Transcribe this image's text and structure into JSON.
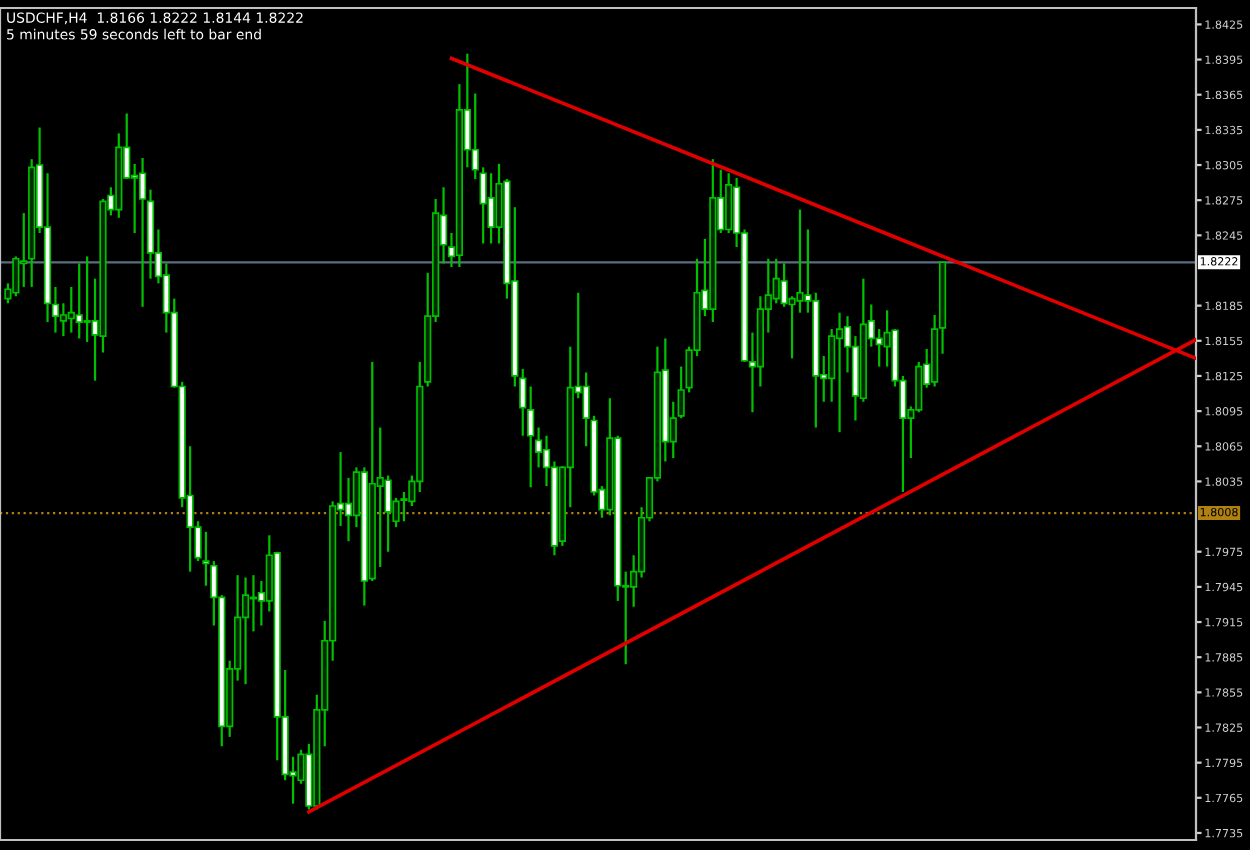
{
  "chart_data": {
    "type": "candlestick",
    "title": "USDCHF,H4  1.8166 1.8222 1.8144 1.8222",
    "annotations": [
      "5 minutes 59 seconds left to bar end"
    ],
    "color": "#00c000",
    "categories": [
      null,
      null,
      null,
      null,
      null,
      null,
      null,
      null,
      null,
      null,
      null,
      null,
      null,
      null,
      null,
      null,
      null,
      null,
      null,
      null,
      null,
      null,
      null,
      null,
      null,
      null,
      null,
      null,
      null,
      null,
      null,
      null,
      null,
      null,
      null,
      null,
      null,
      null,
      null,
      null,
      null,
      null,
      null,
      null,
      null,
      null,
      null,
      null,
      null,
      null,
      null,
      null,
      null,
      null,
      null,
      null,
      null,
      null,
      null,
      null,
      null,
      null,
      null,
      null,
      null,
      null,
      null,
      null,
      null,
      null,
      null,
      null,
      null,
      null,
      null,
      null,
      null,
      null,
      null,
      null,
      null,
      null,
      null,
      null,
      null,
      null,
      null,
      null,
      null,
      null,
      null,
      null,
      null,
      null,
      null,
      null,
      null,
      null,
      null,
      null,
      null,
      null,
      null,
      null,
      null,
      null,
      null,
      null,
      null,
      null,
      null,
      null,
      null,
      null,
      null,
      null,
      null,
      null,
      null,
      null,
      null,
      null,
      null,
      null,
      null,
      null,
      null,
      null,
      null,
      null,
      null,
      null,
      null,
      null,
      null,
      null,
      null,
      null,
      null,
      null,
      null,
      null,
      null,
      null,
      null,
      null,
      null,
      null,
      null,
      null,
      null
    ],
    "ohlc": [
      [
        1.8191,
        1.8204,
        1.8187,
        1.8199
      ],
      [
        1.8196,
        1.8227,
        1.8193,
        1.8225
      ],
      [
        1.8221,
        1.8264,
        1.8201,
        1.8223
      ],
      [
        1.8225,
        1.831,
        1.8201,
        1.8303
      ],
      [
        1.8305,
        1.8337,
        1.8247,
        1.8252
      ],
      [
        1.8252,
        1.8298,
        1.8171,
        1.8187
      ],
      [
        1.8186,
        1.8201,
        1.8162,
        1.8176
      ],
      [
        1.8172,
        1.8187,
        1.8159,
        1.8177
      ],
      [
        1.8174,
        1.8201,
        1.8162,
        1.8179
      ],
      [
        1.8177,
        1.8221,
        1.8157,
        1.8171
      ],
      [
        1.8172,
        1.8227,
        1.8154,
        1.8171
      ],
      [
        1.8172,
        1.8208,
        1.8121,
        1.816
      ],
      [
        1.8159,
        1.8276,
        1.8145,
        1.8274
      ],
      [
        1.8279,
        1.8286,
        1.8262,
        1.8267
      ],
      [
        1.8267,
        1.8332,
        1.826,
        1.832
      ],
      [
        1.832,
        1.8349,
        1.8293,
        1.8294
      ],
      [
        1.8296,
        1.8306,
        1.8247,
        1.8294
      ],
      [
        1.8298,
        1.8311,
        1.8184,
        1.8276
      ],
      [
        1.8274,
        1.8284,
        1.8208,
        1.823
      ],
      [
        1.823,
        1.825,
        1.8204,
        1.821
      ],
      [
        1.8211,
        1.8221,
        1.8162,
        1.8179
      ],
      [
        1.8179,
        1.8191,
        1.8115,
        1.8116
      ],
      [
        1.8116,
        1.812,
        1.8013,
        1.8021
      ],
      [
        1.8023,
        1.8065,
        1.7958,
        1.7996
      ],
      [
        1.7996,
        1.8001,
        1.7967,
        1.797
      ],
      [
        1.7967,
        1.7992,
        1.7946,
        1.7965
      ],
      [
        1.7963,
        1.7967,
        1.7912,
        1.7936
      ],
      [
        1.7936,
        1.7938,
        1.7809,
        1.7826
      ],
      [
        1.7826,
        1.7882,
        1.7817,
        1.7875
      ],
      [
        1.7875,
        1.7955,
        1.7865,
        1.7919
      ],
      [
        1.7919,
        1.7953,
        1.7862,
        1.7938
      ],
      [
        1.7936,
        1.7955,
        1.7907,
        1.7935
      ],
      [
        1.794,
        1.795,
        1.7912,
        1.7933
      ],
      [
        1.7933,
        1.7989,
        1.7924,
        1.7972
      ],
      [
        1.7974,
        1.7975,
        1.7797,
        1.7834
      ],
      [
        1.7834,
        1.7874,
        1.778,
        1.7785
      ],
      [
        1.7787,
        1.78,
        1.776,
        1.7784
      ],
      [
        1.778,
        1.7806,
        1.7777,
        1.7802
      ],
      [
        1.7802,
        1.7811,
        1.7755,
        1.7758
      ],
      [
        1.7758,
        1.7853,
        1.7755,
        1.784
      ],
      [
        1.784,
        1.7916,
        1.7809,
        1.7899
      ],
      [
        1.7899,
        1.8018,
        1.7882,
        1.8014
      ],
      [
        1.8016,
        1.806,
        1.7997,
        1.8011
      ],
      [
        1.8016,
        1.8038,
        1.7984,
        1.8006
      ],
      [
        1.8006,
        1.8047,
        1.7996,
        1.8043
      ],
      [
        1.8043,
        1.8047,
        1.7929,
        1.795
      ],
      [
        1.7952,
        1.8137,
        1.795,
        1.8033
      ],
      [
        1.8031,
        1.8081,
        1.7962,
        1.8038
      ],
      [
        1.8036,
        1.804,
        1.7975,
        1.8009
      ],
      [
        1.8001,
        1.8021,
        1.7996,
        1.8018
      ],
      [
        1.8019,
        1.8026,
        1.8001,
        1.802
      ],
      [
        1.8018,
        1.804,
        1.8014,
        1.8035
      ],
      [
        1.8035,
        1.8137,
        1.8026,
        1.8116
      ],
      [
        1.812,
        1.8213,
        1.8116,
        1.8176
      ],
      [
        1.8176,
        1.8276,
        1.8171,
        1.8264
      ],
      [
        1.8262,
        1.8286,
        1.8221,
        1.8237
      ],
      [
        1.8235,
        1.8247,
        1.8218,
        1.8227
      ],
      [
        1.8228,
        1.8374,
        1.8218,
        1.8352
      ],
      [
        1.8352,
        1.84,
        1.8303,
        1.8318
      ],
      [
        1.8318,
        1.8366,
        1.8293,
        1.8301
      ],
      [
        1.8298,
        1.8303,
        1.8238,
        1.8272
      ],
      [
        1.8277,
        1.8298,
        1.8238,
        1.8252
      ],
      [
        1.8252,
        1.8306,
        1.8238,
        1.8289
      ],
      [
        1.8291,
        1.8293,
        1.8191,
        1.8204
      ],
      [
        1.8206,
        1.8269,
        1.8116,
        1.8125
      ],
      [
        1.8123,
        1.8131,
        1.8074,
        1.8098
      ],
      [
        1.8096,
        1.8116,
        1.803,
        1.8074
      ],
      [
        1.807,
        1.8081,
        1.8047,
        1.806
      ],
      [
        1.8062,
        1.8074,
        1.8031,
        1.8047
      ],
      [
        1.8047,
        1.8052,
        1.7972,
        1.798
      ],
      [
        1.7984,
        1.8048,
        1.798,
        1.8047
      ],
      [
        1.8047,
        1.815,
        1.8013,
        1.8115
      ],
      [
        1.8116,
        1.8196,
        1.8106,
        1.8111
      ],
      [
        1.8116,
        1.8128,
        1.8065,
        1.8089
      ],
      [
        1.8087,
        1.8091,
        1.8023,
        1.8026
      ],
      [
        1.8028,
        1.8031,
        1.8004,
        1.8011
      ],
      [
        1.8011,
        1.8106,
        1.8006,
        1.8072
      ],
      [
        1.8072,
        1.8074,
        1.7933,
        1.7946
      ],
      [
        1.7946,
        1.7958,
        1.7879,
        1.7945
      ],
      [
        1.7945,
        1.7972,
        1.7928,
        1.7958
      ],
      [
        1.7958,
        1.8013,
        1.7953,
        1.8004
      ],
      [
        1.8004,
        1.8038,
        1.8001,
        1.8038
      ],
      [
        1.8038,
        1.815,
        1.8035,
        1.8128
      ],
      [
        1.813,
        1.8157,
        1.8052,
        1.8069
      ],
      [
        1.8069,
        1.8103,
        1.8055,
        1.8089
      ],
      [
        1.8091,
        1.8133,
        1.8089,
        1.8113
      ],
      [
        1.8115,
        1.815,
        1.8111,
        1.8147
      ],
      [
        1.8147,
        1.8225,
        1.8142,
        1.8196
      ],
      [
        1.8198,
        1.8242,
        1.8176,
        1.8182
      ],
      [
        1.8182,
        1.831,
        1.8171,
        1.8277
      ],
      [
        1.8277,
        1.8301,
        1.8247,
        1.825
      ],
      [
        1.825,
        1.8298,
        1.8247,
        1.8288
      ],
      [
        1.8286,
        1.8294,
        1.8235,
        1.8247
      ],
      [
        1.8247,
        1.825,
        1.8137,
        1.8138
      ],
      [
        1.8137,
        1.8162,
        1.8094,
        1.8133
      ],
      [
        1.8133,
        1.8193,
        1.8116,
        1.8182
      ],
      [
        1.8182,
        1.8225,
        1.8162,
        1.8194
      ],
      [
        1.8191,
        1.8225,
        1.8187,
        1.8208
      ],
      [
        1.8206,
        1.8221,
        1.8184,
        1.8187
      ],
      [
        1.8186,
        1.8193,
        1.814,
        1.8191
      ],
      [
        1.8189,
        1.8267,
        1.8179,
        1.8196
      ],
      [
        1.8194,
        1.825,
        1.8179,
        1.8189
      ],
      [
        1.8189,
        1.8196,
        1.8081,
        1.8125
      ],
      [
        1.8126,
        1.8142,
        1.8103,
        1.8123
      ],
      [
        1.8123,
        1.8165,
        1.8103,
        1.8159
      ],
      [
        1.8157,
        1.8179,
        1.8077,
        1.8165
      ],
      [
        1.8167,
        1.8176,
        1.8128,
        1.815
      ],
      [
        1.815,
        1.8159,
        1.8087,
        1.8108
      ],
      [
        1.8106,
        1.8208,
        1.8103,
        1.8169
      ],
      [
        1.8172,
        1.8186,
        1.815,
        1.8157
      ],
      [
        1.8157,
        1.8165,
        1.8133,
        1.8152
      ],
      [
        1.815,
        1.8181,
        1.8133,
        1.8162
      ],
      [
        1.8164,
        1.8165,
        1.8116,
        1.8121
      ],
      [
        1.8121,
        1.8125,
        1.8026,
        1.8089
      ],
      [
        1.8089,
        1.8099,
        1.8055,
        1.8096
      ],
      [
        1.8096,
        1.8137,
        1.8094,
        1.8133
      ],
      [
        1.8135,
        1.8148,
        1.8115,
        1.8118
      ],
      [
        1.812,
        1.8177,
        1.8116,
        1.8165
      ],
      [
        1.8166,
        1.8222,
        1.8144,
        1.8222
      ],
      null,
      null,
      null,
      null,
      null,
      null,
      null,
      null,
      null,
      null,
      null,
      null,
      null,
      null,
      null,
      null,
      null,
      null,
      null,
      null,
      null,
      null,
      null,
      null,
      null,
      null,
      null,
      null,
      null,
      null,
      null,
      null
    ],
    "series": [
      {
        "type": "line",
        "values": [
          null,
          null,
          null,
          null,
          null,
          null,
          null,
          null,
          null,
          null,
          null,
          null,
          null,
          null,
          null,
          null,
          null,
          null,
          null,
          null,
          null,
          null,
          null,
          null,
          null,
          null,
          null,
          null,
          null,
          null,
          null,
          null,
          null,
          null,
          null,
          null,
          null,
          null,
          null,
          null,
          null,
          null,
          null,
          null,
          null,
          null,
          null,
          null,
          null,
          null,
          null,
          null,
          null,
          null,
          null,
          null,
          1.8396,
          null,
          null,
          null,
          null,
          null,
          null,
          null,
          null,
          null,
          null,
          null,
          null,
          null,
          null,
          null,
          null,
          null,
          null,
          null,
          null,
          null,
          null,
          null,
          null,
          null,
          null,
          null,
          null,
          null,
          null,
          null,
          null,
          null,
          null,
          null,
          null,
          null,
          null,
          null,
          null,
          null,
          null,
          null,
          null,
          null,
          null,
          null,
          null,
          null,
          null,
          null,
          null,
          null,
          null,
          null,
          null,
          null,
          null,
          null,
          null,
          null,
          null,
          null,
          null,
          null,
          null,
          null,
          null,
          null,
          null,
          null,
          null,
          null,
          null,
          null,
          null,
          null,
          null,
          null,
          null,
          null,
          null,
          null,
          null,
          null,
          null,
          null,
          null,
          null,
          null,
          null,
          null,
          null,
          1.814
        ],
        "color": "#e00000"
      },
      {
        "type": "line",
        "values": [
          null,
          null,
          null,
          null,
          null,
          null,
          null,
          null,
          null,
          null,
          null,
          null,
          null,
          null,
          null,
          null,
          null,
          null,
          null,
          null,
          null,
          null,
          null,
          null,
          null,
          null,
          null,
          null,
          null,
          null,
          null,
          null,
          null,
          null,
          null,
          null,
          null,
          null,
          1.7753,
          null,
          null,
          null,
          null,
          null,
          null,
          null,
          null,
          null,
          null,
          null,
          null,
          null,
          null,
          null,
          null,
          null,
          null,
          null,
          null,
          null,
          null,
          null,
          null,
          null,
          null,
          null,
          null,
          null,
          null,
          null,
          null,
          null,
          null,
          null,
          null,
          null,
          null,
          null,
          null,
          null,
          null,
          null,
          null,
          null,
          null,
          null,
          null,
          null,
          null,
          null,
          null,
          null,
          null,
          null,
          null,
          null,
          null,
          null,
          null,
          null,
          null,
          null,
          null,
          null,
          null,
          null,
          null,
          null,
          null,
          null,
          null,
          null,
          null,
          null,
          null,
          null,
          null,
          null,
          null,
          null,
          null,
          null,
          null,
          null,
          null,
          null,
          null,
          null,
          null,
          null,
          null,
          null,
          null,
          null,
          null,
          null,
          null,
          null,
          null,
          null,
          null,
          null,
          null,
          null,
          null,
          null,
          null,
          null,
          null,
          null,
          1.8156
        ],
        "color": "#e00000"
      }
    ],
    "ref_lines": [
      {
        "axis": "y",
        "value": 1.8222,
        "label": "1.8222",
        "color": "#5c6f82",
        "line_style": "solid"
      },
      {
        "axis": "y",
        "value": 1.8008,
        "label": "1.8008",
        "color": "#b08010",
        "line_style": "dotted"
      }
    ],
    "ylim": [
      1.7729,
      1.8439
    ],
    "yticks": [
      1.7735,
      1.7765,
      1.7795,
      1.7825,
      1.7855,
      1.7885,
      1.7915,
      1.7945,
      1.7975,
      1.8035,
      1.8065,
      1.8095,
      1.8125,
      1.8155,
      1.8185,
      1.8245,
      1.8275,
      1.8305,
      1.8335,
      1.8365,
      1.8395,
      1.8425
    ],
    "tick_labels": "y"
  }
}
